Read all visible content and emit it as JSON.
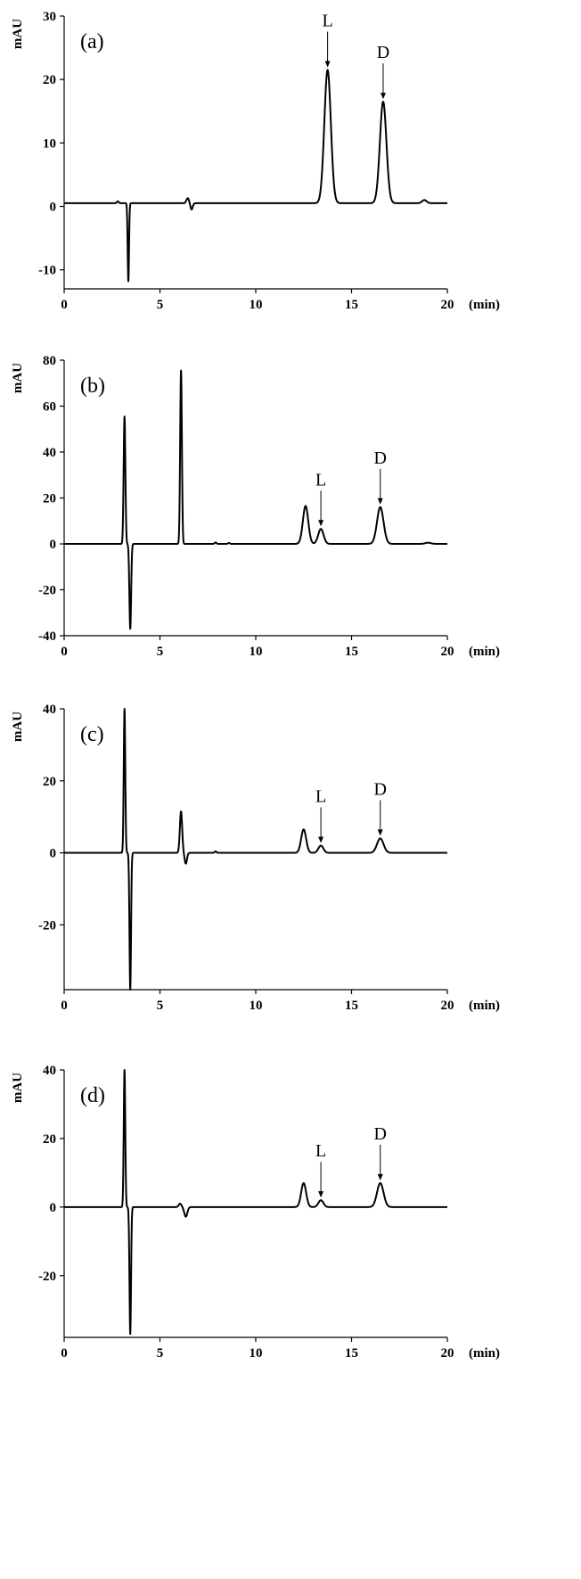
{
  "chart_data": [
    {
      "type": "line",
      "panel_label": "(a)",
      "ylabel": "mAU",
      "xlabel": "(min)",
      "xlim": [
        0,
        20
      ],
      "ylim": [
        -13,
        30
      ],
      "xticks": [
        0,
        5,
        10,
        15,
        20
      ],
      "yticks": [
        -10,
        0,
        10,
        20,
        30
      ],
      "baseline": 0.5,
      "peaks": [
        {
          "rt": 2.8,
          "h": 0.3,
          "w": 0.05
        },
        {
          "rt": 3.35,
          "h": -12.3,
          "w": 0.035
        },
        {
          "rt": 6.45,
          "h": 0.8,
          "w": 0.07
        },
        {
          "rt": 6.65,
          "h": -1.0,
          "w": 0.06
        },
        {
          "rt": 13.75,
          "h": 21.0,
          "w": 0.17
        },
        {
          "rt": 16.65,
          "h": 16.0,
          "w": 0.17
        },
        {
          "rt": 18.8,
          "h": 0.5,
          "w": 0.12
        }
      ],
      "annotations": [
        {
          "text": "L",
          "x": 13.75,
          "y": 21.5
        },
        {
          "text": "D",
          "x": 16.65,
          "y": 16.5
        }
      ]
    },
    {
      "type": "line",
      "panel_label": "(b)",
      "ylabel": "mAU",
      "xlabel": "(min)",
      "xlim": [
        0,
        20
      ],
      "ylim": [
        -40,
        80
      ],
      "xticks": [
        0,
        5,
        10,
        15,
        20
      ],
      "yticks": [
        -40,
        -20,
        0,
        20,
        40,
        60,
        80
      ],
      "baseline": 0,
      "peaks": [
        {
          "rt": 3.15,
          "h": 55.5,
          "w": 0.045
        },
        {
          "rt": 3.45,
          "h": -37.0,
          "w": 0.045
        },
        {
          "rt": 6.1,
          "h": 75.5,
          "w": 0.045
        },
        {
          "rt": 7.9,
          "h": 0.6,
          "w": 0.05
        },
        {
          "rt": 8.6,
          "h": 0.4,
          "w": 0.05
        },
        {
          "rt": 12.6,
          "h": 16.5,
          "w": 0.14
        },
        {
          "rt": 13.4,
          "h": 6.5,
          "w": 0.14
        },
        {
          "rt": 16.5,
          "h": 16.0,
          "w": 0.17
        },
        {
          "rt": 19.0,
          "h": 0.5,
          "w": 0.15
        }
      ],
      "annotations": [
        {
          "text": "L",
          "x": 13.4,
          "y": 6.5
        },
        {
          "text": "D",
          "x": 16.5,
          "y": 16.0
        }
      ]
    },
    {
      "type": "line",
      "panel_label": "(c)",
      "ylabel": "mAU",
      "xlabel": "(min)",
      "xlim": [
        0,
        20
      ],
      "ylim": [
        -38,
        40
      ],
      "xticks": [
        0,
        5,
        10,
        15,
        20
      ],
      "yticks": [
        -20,
        0,
        20,
        40
      ],
      "baseline": 0,
      "peaks": [
        {
          "rt": 3.15,
          "h": 40.0,
          "w": 0.04
        },
        {
          "rt": 3.45,
          "h": -38.0,
          "w": 0.04
        },
        {
          "rt": 6.1,
          "h": 11.5,
          "w": 0.06
        },
        {
          "rt": 6.35,
          "h": -3.0,
          "w": 0.06
        },
        {
          "rt": 7.9,
          "h": 0.4,
          "w": 0.05
        },
        {
          "rt": 12.5,
          "h": 6.5,
          "w": 0.13
        },
        {
          "rt": 13.4,
          "h": 2.0,
          "w": 0.13
        },
        {
          "rt": 16.5,
          "h": 4.0,
          "w": 0.17
        }
      ],
      "annotations": [
        {
          "text": "L",
          "x": 13.4,
          "y": 2.0
        },
        {
          "text": "D",
          "x": 16.5,
          "y": 4.0
        }
      ]
    },
    {
      "type": "line",
      "panel_label": "(d)",
      "ylabel": "mAU",
      "xlabel": "(min)",
      "xlim": [
        0,
        20
      ],
      "ylim": [
        -38,
        40
      ],
      "xticks": [
        0,
        5,
        10,
        15,
        20
      ],
      "yticks": [
        -20,
        0,
        20,
        40
      ],
      "baseline": 0,
      "peaks": [
        {
          "rt": 3.15,
          "h": 40.0,
          "w": 0.04
        },
        {
          "rt": 3.45,
          "h": -37.0,
          "w": 0.04
        },
        {
          "rt": 6.05,
          "h": 1.0,
          "w": 0.07
        },
        {
          "rt": 6.35,
          "h": -2.8,
          "w": 0.08
        },
        {
          "rt": 12.5,
          "h": 7.0,
          "w": 0.13
        },
        {
          "rt": 13.4,
          "h": 2.0,
          "w": 0.13
        },
        {
          "rt": 16.5,
          "h": 7.0,
          "w": 0.17
        }
      ],
      "annotations": [
        {
          "text": "L",
          "x": 13.4,
          "y": 2.0
        },
        {
          "text": "D",
          "x": 16.5,
          "y": 7.0
        }
      ]
    }
  ]
}
